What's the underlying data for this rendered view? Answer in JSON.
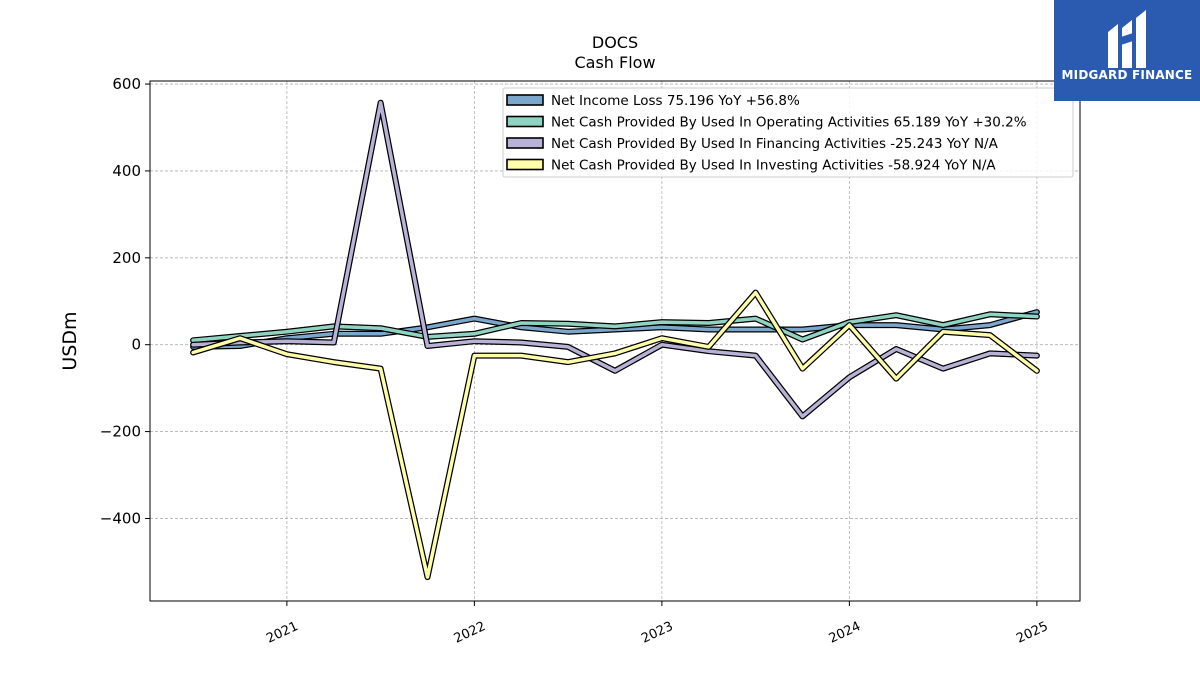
{
  "chart_data": {
    "type": "line",
    "title": "DOCS",
    "subtitle": "Cash Flow",
    "ylabel": "USDm",
    "xlabel": "",
    "ylim": [
      -590,
      607
    ],
    "xlim": [
      2020.27,
      2025.23
    ],
    "yticks": [
      -400,
      -200,
      0,
      200,
      400,
      600
    ],
    "yticklabels": [
      "−400",
      "−200",
      "0",
      "200",
      "400",
      "600"
    ],
    "xticks": [
      2021,
      2022,
      2023,
      2024,
      2025
    ],
    "xticklabels": [
      "2021",
      "2022",
      "2023",
      "2024",
      "2025"
    ],
    "grid": true,
    "legend_position": "top-right",
    "x": [
      2020.5,
      2020.75,
      2021.0,
      2021.25,
      2021.5,
      2021.75,
      2022.0,
      2022.25,
      2022.5,
      2022.75,
      2023.0,
      2023.25,
      2023.5,
      2023.75,
      2024.0,
      2024.25,
      2024.5,
      2024.75,
      2025.0
    ],
    "series": [
      {
        "name": "Net Income Loss",
        "legend": "Net Income Loss  75.196 YoY +56.8%",
        "color": "#7ba7cc",
        "values": [
          -5,
          -3,
          15,
          25,
          25,
          40,
          60,
          40,
          30,
          35,
          40,
          35,
          35,
          35,
          45,
          45,
          35,
          45,
          75
        ]
      },
      {
        "name": "Net Cash Provided By Used In Operating Activities",
        "legend": "Net Cash Provided By Used In Operating Activities  65.189 YoY +30.2%",
        "color": "#8fd3c1",
        "values": [
          10,
          20,
          30,
          42,
          38,
          18,
          25,
          50,
          48,
          42,
          52,
          50,
          60,
          12,
          52,
          68,
          45,
          70,
          65
        ]
      },
      {
        "name": "Net Cash Provided By Used In Financing Activities",
        "legend": "Net Cash Provided By Used In Financing Activities  -25.243 YoY N/A",
        "color": "#b8b3d6",
        "values": [
          0,
          5,
          8,
          5,
          557,
          -3,
          8,
          5,
          -5,
          -60,
          0,
          -15,
          -25,
          -165,
          -75,
          -10,
          -55,
          -20,
          -25
        ]
      },
      {
        "name": "Net Cash Provided By Used In Investing Activities",
        "legend": "Net Cash Provided By Used In Investing Activities  -58.924 YoY N/A",
        "color": "#fefdaa",
        "values": [
          -18,
          15,
          -22,
          -40,
          -55,
          -535,
          -25,
          -25,
          -40,
          -20,
          15,
          -5,
          120,
          -55,
          45,
          -78,
          30,
          22,
          -60
        ]
      }
    ]
  },
  "branding": {
    "logo_text": "MIDGARD FINANCE",
    "logo_color": "#2a5bb0"
  }
}
